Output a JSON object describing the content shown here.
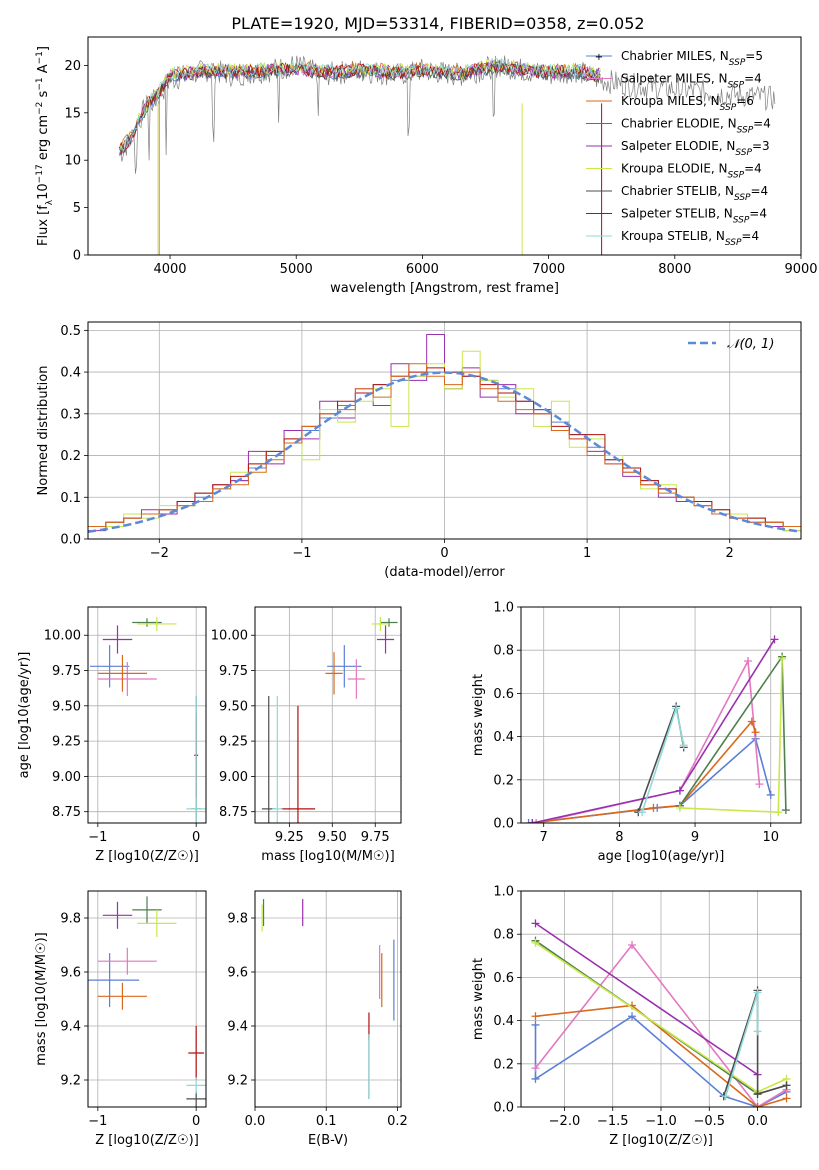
{
  "title": "PLATE=1920, MJD=53314, FIBERID=0358, z=0.052",
  "colors": {
    "Chabrier MILES": "#5b7fd6",
    "Salpeter MILES": "#e377c2",
    "Kroupa MILES": "#d9691c",
    "Chabrier ELODIE": "#4f7f4f",
    "Salpeter ELODIE": "#9a2fb0",
    "Kroupa ELODIE": "#c8e84a",
    "Chabrier STELIB": "#4d4d4d",
    "Salpeter STELIB": "#b01010",
    "Kroupa STELIB": "#8fd9d9",
    "gray": "#808080",
    "gauss": "#5b8ad6"
  },
  "chart_data": [
    {
      "type": "line",
      "xlabel": "wavelength [Angstrom, rest frame]",
      "ylabel": "Flux [f_λ10^-17 erg cm^-2 s^-1 A^-1]",
      "xlim": [
        3350,
        9000
      ],
      "ylim": [
        0,
        23
      ],
      "xticks": [
        4000,
        5000,
        6000,
        7000,
        8000,
        9000
      ],
      "yticks": [
        0,
        5,
        10,
        15,
        20
      ],
      "legend_position": "top-right",
      "legend": [
        {
          "name": "Chabrier MILES",
          "nssp": "5"
        },
        {
          "name": "Salpeter MILES",
          "nssp": "4"
        },
        {
          "name": "Kroupa MILES",
          "nssp": "6"
        },
        {
          "name": "Chabrier ELODIE",
          "nssp": "4"
        },
        {
          "name": "Salpeter ELODIE",
          "nssp": "3"
        },
        {
          "name": "Kroupa ELODIE",
          "nssp": "4"
        },
        {
          "name": "Chabrier STELIB",
          "nssp": "4"
        },
        {
          "name": "Salpeter STELIB",
          "nssp": "4"
        },
        {
          "name": "Kroupa STELIB",
          "nssp": "4"
        }
      ],
      "data_envelope": {
        "x": [
          3600,
          3700,
          3800,
          3900,
          4000,
          4300,
          4500,
          4800,
          5000,
          5200,
          5500,
          5800,
          6000,
          6300,
          6600,
          6800,
          7000,
          7200,
          7400,
          7600,
          8000,
          8400,
          8800
        ],
        "y": [
          10.5,
          12.5,
          15.5,
          16.5,
          18.5,
          19.5,
          19.0,
          19.5,
          20.0,
          19.0,
          19.5,
          19.0,
          19.5,
          19.0,
          20.0,
          19.5,
          19.0,
          19.5,
          18.5,
          18.0,
          17.5,
          17.0,
          16.5
        ]
      },
      "model_envelope": {
        "x": [
          3600,
          3700,
          3800,
          3900,
          4000,
          4300,
          4500,
          4800,
          5000,
          5200,
          5500,
          5800,
          6000,
          6300,
          6600,
          6800,
          7000,
          7200,
          7400
        ],
        "y": [
          11.0,
          12.5,
          15.5,
          17.0,
          19.0,
          19.5,
          19.3,
          19.5,
          19.7,
          19.3,
          19.5,
          19.3,
          19.5,
          19.2,
          20.0,
          19.6,
          19.3,
          19.4,
          19.0
        ]
      }
    },
    {
      "type": "line",
      "xlabel": "(data-model)/error",
      "ylabel": "Normed distribution",
      "xlim": [
        -2.5,
        2.5
      ],
      "ylim": [
        0,
        0.52
      ],
      "xticks": [
        -2,
        -1,
        0,
        1,
        2
      ],
      "yticks": [
        0.0,
        0.1,
        0.2,
        0.3,
        0.4,
        0.5
      ],
      "legend": "𝒩(0, 1)",
      "legend_position": "top-right",
      "series": [
        {
          "name": "Chabrier MILES",
          "values": [
            0.03,
            0.04,
            0.05,
            0.06,
            0.07,
            0.08,
            0.1,
            0.12,
            0.14,
            0.17,
            0.2,
            0.23,
            0.26,
            0.29,
            0.32,
            0.35,
            0.37,
            0.38,
            0.39,
            0.4,
            0.4,
            0.39,
            0.38,
            0.36,
            0.33,
            0.31,
            0.28,
            0.25,
            0.22,
            0.19,
            0.16,
            0.14,
            0.12,
            0.1,
            0.08,
            0.07,
            0.06,
            0.05,
            0.04,
            0.03
          ]
        },
        {
          "name": "Salpeter ELODIE",
          "values": [
            0.02,
            0.03,
            0.05,
            0.07,
            0.06,
            0.09,
            0.11,
            0.13,
            0.14,
            0.21,
            0.18,
            0.26,
            0.24,
            0.33,
            0.29,
            0.36,
            0.32,
            0.42,
            0.38,
            0.49,
            0.36,
            0.41,
            0.34,
            0.37,
            0.3,
            0.31,
            0.26,
            0.24,
            0.21,
            0.18,
            0.15,
            0.13,
            0.1,
            0.09,
            0.08,
            0.06,
            0.05,
            0.04,
            0.03,
            0.02
          ]
        },
        {
          "name": "Kroupa ELODIE",
          "values": [
            0.03,
            0.03,
            0.06,
            0.05,
            0.08,
            0.08,
            0.11,
            0.12,
            0.16,
            0.18,
            0.21,
            0.24,
            0.19,
            0.31,
            0.28,
            0.33,
            0.36,
            0.27,
            0.39,
            0.42,
            0.36,
            0.45,
            0.38,
            0.34,
            0.36,
            0.27,
            0.33,
            0.22,
            0.24,
            0.2,
            0.17,
            0.12,
            0.13,
            0.1,
            0.09,
            0.07,
            0.06,
            0.05,
            0.04,
            0.02
          ]
        },
        {
          "name": "Salpeter STELIB",
          "values": [
            0.03,
            0.04,
            0.05,
            0.06,
            0.07,
            0.09,
            0.11,
            0.13,
            0.15,
            0.18,
            0.21,
            0.24,
            0.27,
            0.3,
            0.33,
            0.35,
            0.37,
            0.39,
            0.4,
            0.41,
            0.4,
            0.39,
            0.37,
            0.35,
            0.33,
            0.3,
            0.27,
            0.25,
            0.25,
            0.19,
            0.17,
            0.14,
            0.12,
            0.1,
            0.09,
            0.07,
            0.05,
            0.05,
            0.04,
            0.03
          ]
        },
        {
          "name": "Kroupa MILES",
          "values": [
            0.03,
            0.04,
            0.05,
            0.06,
            0.07,
            0.08,
            0.09,
            0.12,
            0.13,
            0.16,
            0.19,
            0.23,
            0.27,
            0.3,
            0.31,
            0.36,
            0.34,
            0.39,
            0.42,
            0.39,
            0.37,
            0.4,
            0.36,
            0.33,
            0.31,
            0.3,
            0.26,
            0.24,
            0.2,
            0.18,
            0.16,
            0.13,
            0.11,
            0.1,
            0.08,
            0.06,
            0.05,
            0.04,
            0.04,
            0.03
          ]
        }
      ],
      "gauss": {
        "mu": 0,
        "sigma": 1
      }
    },
    {
      "type": "scatter",
      "xlabel": "Z [log10(Z/Z☉)]",
      "ylabel": "age  [log10(age/yr)]",
      "xlim": [
        -1.1,
        0.1
      ],
      "ylim": [
        8.67,
        10.2
      ],
      "xticks": [
        -1,
        0
      ],
      "yticks": [
        8.75,
        9.0,
        9.25,
        9.5,
        9.75,
        10.0
      ],
      "points": [
        {
          "name": "Chabrier MILES",
          "x": -0.88,
          "y": 9.78,
          "xerr": 0.2,
          "yerr": 0.15
        },
        {
          "name": "Salpeter MILES",
          "x": -0.7,
          "y": 9.69,
          "xerr": 0.3,
          "yerr": 0.12
        },
        {
          "name": "Kroupa MILES",
          "x": -0.75,
          "y": 9.73,
          "xerr": 0.25,
          "yerr": 0.13
        },
        {
          "name": "Chabrier ELODIE",
          "x": -0.5,
          "y": 10.09,
          "xerr": 0.15,
          "yerr": 0.03
        },
        {
          "name": "Salpeter ELODIE",
          "x": -0.8,
          "y": 9.97,
          "xerr": 0.15,
          "yerr": 0.1
        },
        {
          "name": "Kroupa ELODIE",
          "x": -0.4,
          "y": 10.08,
          "xerr": 0.2,
          "yerr": 0.05
        },
        {
          "name": "Chabrier STELIB",
          "x": 0,
          "y": 8.77,
          "xerr": 0.05,
          "yerr": 0.8
        },
        {
          "name": "Salpeter STELIB",
          "x": 0,
          "y": 9.15,
          "xerr": 0.02,
          "yerr": 0.3
        },
        {
          "name": "Kroupa STELIB",
          "x": 0,
          "y": 8.77,
          "xerr": 0.1,
          "yerr": 0.8
        }
      ]
    },
    {
      "type": "scatter",
      "xlabel": "mass [log10(M/M☉)]",
      "xlim": [
        9.05,
        9.9
      ],
      "ylim": [
        8.67,
        10.2
      ],
      "xticks": [
        9.25,
        9.5,
        9.75
      ],
      "yticks": [
        8.75,
        9.0,
        9.25,
        9.5,
        9.75,
        10.0
      ],
      "points": [
        {
          "name": "Chabrier MILES",
          "x": 9.57,
          "y": 9.78,
          "xerr": 0.1,
          "yerr": 0.15
        },
        {
          "name": "Salpeter MILES",
          "x": 9.64,
          "y": 9.69,
          "xerr": 0.05,
          "yerr": 0.14
        },
        {
          "name": "Kroupa MILES",
          "x": 9.51,
          "y": 9.73,
          "xerr": 0.05,
          "yerr": 0.15
        },
        {
          "name": "Chabrier ELODIE",
          "x": 9.83,
          "y": 10.09,
          "xerr": 0.05,
          "yerr": 0.03
        },
        {
          "name": "Salpeter ELODIE",
          "x": 9.81,
          "y": 9.97,
          "xerr": 0.05,
          "yerr": 0.1
        },
        {
          "name": "Kroupa ELODIE",
          "x": 9.78,
          "y": 10.08,
          "xerr": 0.05,
          "yerr": 0.05
        },
        {
          "name": "Chabrier STELIB",
          "x": 9.13,
          "y": 8.77,
          "xerr": 0.04,
          "yerr": 0.8
        },
        {
          "name": "Salpeter STELIB",
          "x": 9.3,
          "y": 8.77,
          "xerr": 0.1,
          "yerr": 0.73
        },
        {
          "name": "Kroupa STELIB",
          "x": 9.18,
          "y": 8.77,
          "xerr": 0.03,
          "yerr": 0.8
        }
      ]
    },
    {
      "type": "line",
      "xlabel": "age  [log10(age/yr)]",
      "ylabel": "mass weight",
      "xlim": [
        6.7,
        10.4
      ],
      "ylim": [
        0,
        1.0
      ],
      "xticks": [
        7,
        8,
        9,
        10
      ],
      "yticks": [
        0.0,
        0.2,
        0.4,
        0.6,
        0.8,
        1.0
      ],
      "series": [
        {
          "name": "Chabrier MILES",
          "x": [
            6.8,
            8.5,
            8.8,
            9.8,
            10.0
          ],
          "y": [
            0.0,
            0.07,
            0.08,
            0.39,
            0.13
          ]
        },
        {
          "name": "Salpeter MILES",
          "x": [
            6.9,
            8.8,
            9.7,
            9.85
          ],
          "y": [
            0.0,
            0.15,
            0.75,
            0.18
          ]
        },
        {
          "name": "Kroupa MILES",
          "x": [
            6.85,
            8.45,
            8.8,
            9.75,
            9.8
          ],
          "y": [
            0.0,
            0.07,
            0.08,
            0.47,
            0.42
          ]
        },
        {
          "name": "Chabrier ELODIE",
          "x": [
            8.8,
            10.15,
            10.2
          ],
          "y": [
            0.08,
            0.77,
            0.06
          ]
        },
        {
          "name": "Salpeter ELODIE",
          "x": [
            6.85,
            8.8,
            10.05
          ],
          "y": [
            0.0,
            0.15,
            0.85
          ]
        },
        {
          "name": "Kroupa ELODIE",
          "x": [
            8.8,
            10.1,
            10.15
          ],
          "y": [
            0.07,
            0.05,
            0.76
          ]
        },
        {
          "name": "Chabrier STELIB",
          "x": [
            8.25,
            8.75,
            8.85
          ],
          "y": [
            0.05,
            0.54,
            0.35
          ]
        },
        {
          "name": "Kroupa STELIB",
          "x": [
            8.3,
            8.75,
            8.85
          ],
          "y": [
            0.05,
            0.53,
            0.36
          ]
        }
      ]
    },
    {
      "type": "scatter",
      "xlabel": "Z [log10(Z/Z☉)]",
      "ylabel": "mass [log10(M/M☉)]",
      "xlim": [
        -1.1,
        0.1
      ],
      "ylim": [
        9.1,
        9.9
      ],
      "xticks": [
        -1,
        0
      ],
      "yticks": [
        9.2,
        9.4,
        9.6,
        9.8
      ],
      "points": [
        {
          "name": "Chabrier MILES",
          "x": -0.88,
          "y": 9.57,
          "xerr": 0.3,
          "yerr": 0.1
        },
        {
          "name": "Salpeter MILES",
          "x": -0.7,
          "y": 9.64,
          "xerr": 0.3,
          "yerr": 0.05
        },
        {
          "name": "Kroupa MILES",
          "x": -0.75,
          "y": 9.51,
          "xerr": 0.25,
          "yerr": 0.05
        },
        {
          "name": "Chabrier ELODIE",
          "x": -0.5,
          "y": 9.83,
          "xerr": 0.15,
          "yerr": 0.05
        },
        {
          "name": "Salpeter ELODIE",
          "x": -0.8,
          "y": 9.81,
          "xerr": 0.15,
          "yerr": 0.05
        },
        {
          "name": "Kroupa ELODIE",
          "x": -0.4,
          "y": 9.78,
          "xerr": 0.2,
          "yerr": 0.05
        },
        {
          "name": "Chabrier STELIB",
          "x": 0,
          "y": 9.13,
          "xerr": 0.1,
          "yerr": 0.03
        },
        {
          "name": "Salpeter STELIB",
          "x": 0,
          "y": 9.3,
          "xerr": 0.08,
          "yerr": 0.1
        },
        {
          "name": "Kroupa STELIB",
          "x": 0,
          "y": 9.18,
          "xerr": 0.1,
          "yerr": 0.03
        }
      ]
    },
    {
      "type": "scatter",
      "xlabel": "E(B-V)",
      "xlim": [
        0,
        0.205
      ],
      "ylim": [
        9.1,
        9.9
      ],
      "xticks": [
        0.0,
        0.1,
        0.2
      ],
      "yticks": [
        9.2,
        9.4,
        9.6,
        9.8
      ],
      "points": [
        {
          "name": "Chabrier MILES",
          "x": 0.195,
          "y": 9.57,
          "yerr": 0.15
        },
        {
          "name": "Salpeter MILES",
          "x": 0.175,
          "y": 9.6,
          "yerr": 0.1
        },
        {
          "name": "Kroupa MILES",
          "x": 0.178,
          "y": 9.57,
          "yerr": 0.1
        },
        {
          "name": "Chabrier ELODIE",
          "x": 0.012,
          "y": 9.82,
          "yerr": 0.05
        },
        {
          "name": "Salpeter ELODIE",
          "x": 0.067,
          "y": 9.82,
          "yerr": 0.05
        },
        {
          "name": "Kroupa ELODIE",
          "x": 0.01,
          "y": 9.8,
          "yerr": 0.05
        },
        {
          "name": "Chabrier STELIB",
          "x": 0.16,
          "y": 9.25,
          "yerr": 0.12
        },
        {
          "name": "Salpeter STELIB",
          "x": 0.16,
          "y": 9.4,
          "yerr": 0.05
        },
        {
          "name": "Kroupa STELIB",
          "x": 0.16,
          "y": 9.25,
          "yerr": 0.12
        }
      ]
    },
    {
      "type": "line",
      "xlabel": "Z [log10(Z/Z☉)]",
      "ylabel": "mass weight",
      "xlim": [
        -2.45,
        0.45
      ],
      "ylim": [
        0,
        1.0
      ],
      "xticks": [
        -2.0,
        -1.5,
        -1.0,
        -0.5,
        0.0
      ],
      "yticks": [
        0.0,
        0.2,
        0.4,
        0.6,
        0.8,
        1.0
      ],
      "series": [
        {
          "name": "Chabrier MILES",
          "x": [
            -2.3,
            -2.3,
            -1.3,
            -0.35,
            0.0,
            0.3
          ],
          "y": [
            0.38,
            0.13,
            0.42,
            0.05,
            0.0,
            0.07
          ]
        },
        {
          "name": "Salpeter MILES",
          "x": [
            -2.3,
            -1.3,
            0.0,
            0.3
          ],
          "y": [
            0.18,
            0.75,
            0.0,
            0.08
          ]
        },
        {
          "name": "Kroupa MILES",
          "x": [
            -2.3,
            -1.3,
            0.0,
            0.3
          ],
          "y": [
            0.42,
            0.47,
            0.0,
            0.04
          ]
        },
        {
          "name": "Chabrier ELODIE",
          "x": [
            -2.3,
            0.0,
            0.3
          ],
          "y": [
            0.77,
            0.06,
            0.1
          ]
        },
        {
          "name": "Salpeter ELODIE",
          "x": [
            -2.3,
            0.0
          ],
          "y": [
            0.85,
            0.15
          ]
        },
        {
          "name": "Kroupa ELODIE",
          "x": [
            -2.3,
            0.0,
            0.3
          ],
          "y": [
            0.76,
            0.07,
            0.13
          ]
        },
        {
          "name": "Chabrier STELIB",
          "x": [
            -0.35,
            0.0,
            0.0,
            0.3
          ],
          "y": [
            0.05,
            0.54,
            0.06,
            0.1
          ]
        },
        {
          "name": "Kroupa STELIB",
          "x": [
            -0.33,
            0.0,
            0.0
          ],
          "y": [
            0.05,
            0.53,
            0.35
          ]
        }
      ]
    }
  ]
}
